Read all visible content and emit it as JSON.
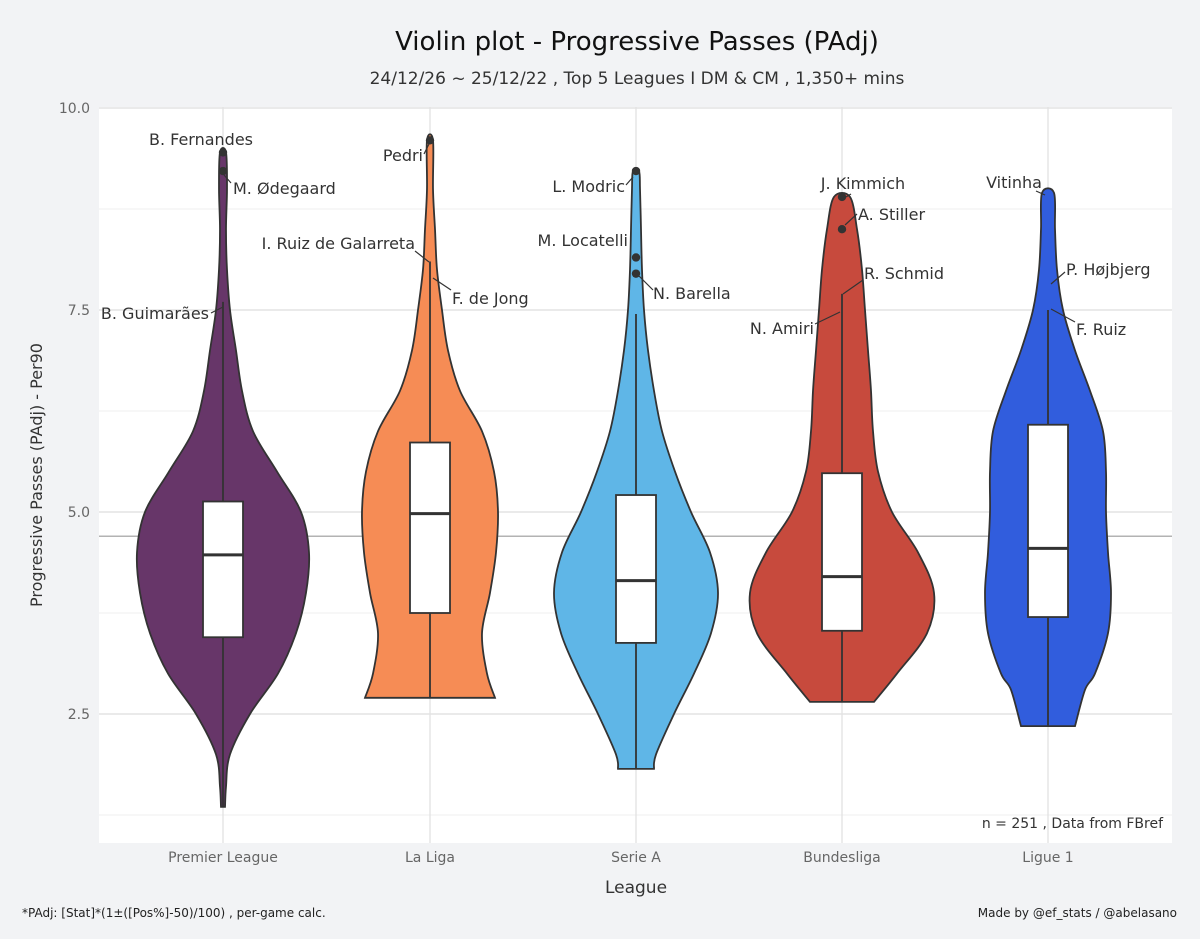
{
  "chart_data": {
    "type": "violin",
    "title": "Violin plot -  Progressive Passes (PAdj)",
    "subtitle": "24/12/26 ~ 25/12/22 , Top 5 Leagues I DM & CM , 1,350+ mins",
    "xlabel": "League",
    "ylabel": "Progressive Passes (PAdj)  -  Per90",
    "ylim": [
      1.1,
      10.0
    ],
    "yticks": [
      2.5,
      5.0,
      7.5,
      10.0
    ],
    "ytick_labels": [
      "2.5",
      "5.0",
      "7.5",
      "10.0"
    ],
    "overall_mean": 4.7,
    "note": "n =  251 , Data from  FBref",
    "footnote_left": "*PAdj: [Stat]*(1±([Pos%]-50)/100) , per-game calc.",
    "footnote_right": "Made by @ef_stats / @abelasano",
    "categories": [
      "Premier League",
      "La Liga",
      "Serie A",
      "Bundesliga",
      "Ligue 1"
    ],
    "leagues": [
      {
        "name": "Premier League",
        "color": "#673669",
        "min": 1.35,
        "q1": 3.45,
        "median": 4.47,
        "q3": 5.13,
        "whisker_high": 7.6,
        "max": 9.45,
        "density": [
          [
            1.35,
            2
          ],
          [
            1.6,
            3
          ],
          [
            2.0,
            7
          ],
          [
            2.5,
            27
          ],
          [
            3.0,
            55
          ],
          [
            3.5,
            73
          ],
          [
            4.0,
            83
          ],
          [
            4.5,
            86
          ],
          [
            5.0,
            78
          ],
          [
            5.5,
            54
          ],
          [
            6.0,
            30
          ],
          [
            6.5,
            19
          ],
          [
            7.0,
            13
          ],
          [
            7.5,
            7
          ],
          [
            8.0,
            4
          ],
          [
            8.5,
            3
          ],
          [
            9.0,
            4
          ],
          [
            9.45,
            3
          ]
        ],
        "points": [
          {
            "label": "B. Fernandes",
            "value": 9.45
          },
          {
            "label": "M. Ødegaard",
            "value": 9.22
          },
          {
            "label": "B. Guimarães",
            "value": 7.6
          }
        ]
      },
      {
        "name": "La Liga",
        "color": "#f68c55",
        "min": 2.7,
        "q1": 3.75,
        "median": 4.98,
        "q3": 5.86,
        "whisker_high": 8.1,
        "max": 9.6,
        "density": [
          [
            2.7,
            65
          ],
          [
            3.0,
            57
          ],
          [
            3.5,
            52
          ],
          [
            4.0,
            60
          ],
          [
            4.5,
            66
          ],
          [
            5.0,
            68
          ],
          [
            5.5,
            64
          ],
          [
            6.0,
            52
          ],
          [
            6.5,
            30
          ],
          [
            7.0,
            18
          ],
          [
            7.5,
            12
          ],
          [
            8.0,
            7
          ],
          [
            8.5,
            5
          ],
          [
            9.0,
            3
          ],
          [
            9.6,
            3
          ]
        ],
        "points": [
          {
            "label": "Pedri",
            "value": 9.6
          },
          {
            "label": "I. Ruiz de Galarreta",
            "value": 8.1
          },
          {
            "label": "F. de Jong",
            "value": 7.9
          }
        ]
      },
      {
        "name": "Serie A",
        "color": "#5fb6e7",
        "min": 1.82,
        "q1": 3.38,
        "median": 4.15,
        "q3": 5.21,
        "whisker_high": 7.45,
        "max": 9.22,
        "density": [
          [
            1.82,
            18
          ],
          [
            2.0,
            20
          ],
          [
            2.5,
            38
          ],
          [
            3.0,
            58
          ],
          [
            3.5,
            75
          ],
          [
            4.0,
            82
          ],
          [
            4.5,
            74
          ],
          [
            5.0,
            55
          ],
          [
            5.5,
            39
          ],
          [
            6.0,
            26
          ],
          [
            6.5,
            18
          ],
          [
            7.0,
            12
          ],
          [
            7.5,
            8
          ],
          [
            8.0,
            6
          ],
          [
            8.5,
            5
          ],
          [
            9.0,
            4
          ],
          [
            9.22,
            3
          ]
        ],
        "points": [
          {
            "label": "L. Modric",
            "value": 9.22
          },
          {
            "label": "M. Locatelli",
            "value": 8.15
          },
          {
            "label": "N. Barella",
            "value": 7.95
          }
        ]
      },
      {
        "name": "Bundesliga",
        "color": "#c74a3d",
        "min": 2.65,
        "q1": 3.53,
        "median": 4.2,
        "q3": 5.48,
        "whisker_high": 7.7,
        "max": 8.9,
        "density": [
          [
            2.65,
            32
          ],
          [
            3.0,
            55
          ],
          [
            3.5,
            85
          ],
          [
            4.0,
            92
          ],
          [
            4.5,
            76
          ],
          [
            5.0,
            50
          ],
          [
            5.5,
            36
          ],
          [
            6.0,
            31
          ],
          [
            6.5,
            29
          ],
          [
            7.0,
            26
          ],
          [
            7.5,
            23
          ],
          [
            8.0,
            20
          ],
          [
            8.5,
            15
          ],
          [
            8.9,
            8
          ]
        ],
        "points": [
          {
            "label": "J. Kimmich",
            "value": 8.9
          },
          {
            "label": "A. Stiller",
            "value": 8.5
          },
          {
            "label": "R. Schmid",
            "value": 7.7
          },
          {
            "label": "N. Amiri",
            "value": 7.25
          }
        ]
      },
      {
        "name": "Ligue 1",
        "color": "#315ddd",
        "min": 2.35,
        "q1": 3.7,
        "median": 4.55,
        "q3": 6.08,
        "whisker_high": 7.5,
        "max": 8.95,
        "density": [
          [
            2.35,
            27
          ],
          [
            2.8,
            37
          ],
          [
            3.0,
            47
          ],
          [
            3.5,
            60
          ],
          [
            4.0,
            63
          ],
          [
            4.5,
            60
          ],
          [
            5.0,
            58
          ],
          [
            5.5,
            58
          ],
          [
            6.0,
            55
          ],
          [
            6.5,
            42
          ],
          [
            7.0,
            27
          ],
          [
            7.5,
            15
          ],
          [
            8.0,
            9
          ],
          [
            8.5,
            7
          ],
          [
            8.95,
            6
          ]
        ],
        "points": [
          {
            "label": "Vitinha",
            "value": 8.95
          },
          {
            "label": "P. Højbjerg",
            "value": 7.95
          },
          {
            "label": "F. Ruiz",
            "value": 7.4
          }
        ]
      }
    ]
  }
}
